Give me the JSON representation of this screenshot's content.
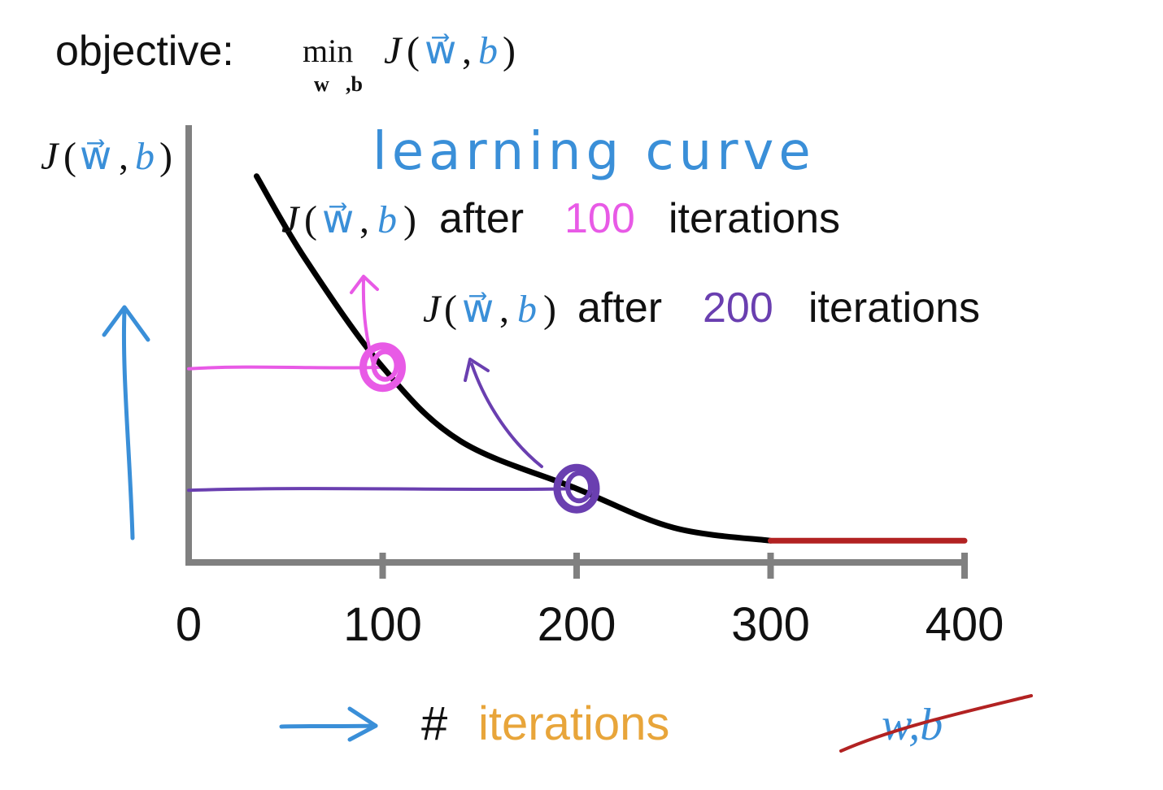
{
  "objective": {
    "label": "objective:",
    "min": "min",
    "min_sub": "w⃗,b",
    "J": "J",
    "open": "(",
    "w": "w⃗",
    "comma": ",",
    "b": "b",
    "close": ")"
  },
  "y_axis_label": {
    "J": "J",
    "open": "(",
    "w": "w⃗",
    "comma": ",",
    "b": "b",
    "close": ")"
  },
  "handwritten_title": "learning curve",
  "annotation_100": {
    "J": "J",
    "open": "(",
    "w": "w⃗",
    "comma": ",",
    "b": "b",
    "close": ")",
    "after": "after",
    "number": "100",
    "iterations": "iterations"
  },
  "annotation_200": {
    "J": "J",
    "open": "(",
    "w": "w⃗",
    "comma": ",",
    "b": "b",
    "close": ")",
    "after": "after",
    "number": "200",
    "iterations": "iterations"
  },
  "x_axis_label": {
    "hash": "#",
    "iterations": "iterations"
  },
  "crossed_out_label": "w,b",
  "colors": {
    "axis": "#808080",
    "curve": "#000000",
    "converged": "#b22222",
    "blue": "#3a8fd8",
    "magenta": "#e85ae6",
    "purple": "#6a3fb0",
    "orange": "#e8a53a",
    "text": "#111111"
  },
  "chart_data": {
    "type": "line",
    "title": "",
    "xlabel": "# iterations",
    "ylabel": "J(w,b)",
    "xticks": [
      "0",
      "100",
      "200",
      "300",
      "400"
    ],
    "xlim": [
      0,
      400
    ],
    "ylim": [
      0,
      1
    ],
    "series": [
      {
        "x": [
          35,
          60,
          100,
          140,
          200,
          250,
          300
        ],
        "y": [
          0.89,
          0.7,
          0.45,
          0.28,
          0.17,
          0.08,
          0.05
        ]
      },
      {
        "x": [
          300,
          400
        ],
        "y": [
          0.05,
          0.05
        ]
      }
    ],
    "highlighted_points": [
      {
        "x": 100,
        "y": 0.45,
        "label": "J(w,b) after 100 iterations"
      },
      {
        "x": 200,
        "y": 0.17,
        "label": "J(w,b) after 200 iterations"
      }
    ],
    "grid": false
  }
}
